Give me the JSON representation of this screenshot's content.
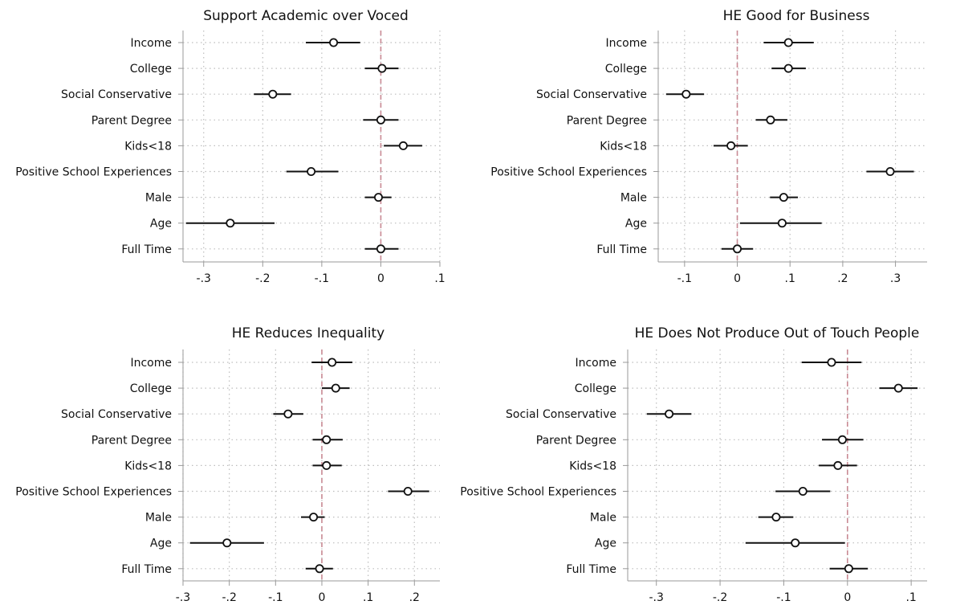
{
  "colors": {
    "point_stroke": "#111111",
    "ci_line": "#111111",
    "zero_line": "#c98a94",
    "grid": "#bdbdbd",
    "axis": "#9a9a9a",
    "background": "#ffffff"
  },
  "chart_data": [
    {
      "type": "scatter",
      "subtype": "coefficient-plot",
      "title": "Support Academic over Voced",
      "grid": true,
      "reference_line": 0,
      "categories": [
        "Income",
        "College",
        "Social Conservative",
        "Parent Degree",
        "Kids<18",
        "Positive School Experiences",
        "Male",
        "Age",
        "Full Time"
      ],
      "estimates": [
        -0.08,
        0.002,
        -0.183,
        0.0,
        0.038,
        -0.118,
        -0.004,
        -0.255,
        0.0
      ],
      "ci_low": [
        -0.127,
        -0.027,
        -0.215,
        -0.03,
        0.005,
        -0.16,
        -0.027,
        -0.33,
        -0.027
      ],
      "ci_high": [
        -0.035,
        0.03,
        -0.152,
        0.03,
        0.07,
        -0.072,
        0.018,
        -0.18,
        0.03
      ],
      "xlim": [
        -0.335,
        0.1
      ],
      "xticks": [
        -0.3,
        -0.2,
        -0.1,
        0,
        0.1
      ],
      "xtick_labels": [
        "-.3",
        "-.2",
        "-.1",
        "0",
        ".1"
      ]
    },
    {
      "type": "scatter",
      "subtype": "coefficient-plot",
      "title": "HE Good for Business",
      "grid": true,
      "reference_line": 0,
      "categories": [
        "Income",
        "College",
        "Social Conservative",
        "Parent Degree",
        "Kids<18",
        "Positive School Experiences",
        "Male",
        "Age",
        "Full Time"
      ],
      "estimates": [
        0.097,
        0.097,
        -0.097,
        0.063,
        -0.012,
        0.29,
        0.088,
        0.085,
        0.0
      ],
      "ci_low": [
        0.05,
        0.065,
        -0.135,
        0.035,
        -0.045,
        0.245,
        0.062,
        0.005,
        -0.03
      ],
      "ci_high": [
        0.145,
        0.13,
        -0.063,
        0.095,
        0.02,
        0.335,
        0.115,
        0.16,
        0.03
      ],
      "xlim": [
        -0.15,
        0.36
      ],
      "xticks": [
        -0.1,
        0,
        0.1,
        0.2,
        0.3
      ],
      "xtick_labels": [
        "-.1",
        "0",
        ".1",
        ".2",
        ".3"
      ]
    },
    {
      "type": "scatter",
      "subtype": "coefficient-plot",
      "title": "HE Reduces Inequality",
      "grid": true,
      "reference_line": 0,
      "categories": [
        "Income",
        "College",
        "Social Conservative",
        "Parent Degree",
        "Kids<18",
        "Positive School Experiences",
        "Male",
        "Age",
        "Full Time"
      ],
      "estimates": [
        0.022,
        0.03,
        -0.073,
        0.01,
        0.01,
        0.186,
        -0.018,
        -0.205,
        -0.005
      ],
      "ci_low": [
        -0.022,
        0.0,
        -0.105,
        -0.02,
        -0.02,
        0.143,
        -0.045,
        -0.285,
        -0.035
      ],
      "ci_high": [
        0.066,
        0.06,
        -0.04,
        0.045,
        0.043,
        0.232,
        0.006,
        -0.125,
        0.024
      ],
      "xlim": [
        -0.3,
        0.255
      ],
      "xticks": [
        -0.3,
        -0.2,
        -0.1,
        0,
        0.1,
        0.2
      ],
      "xtick_labels": [
        "-.3",
        "-.2",
        "-.1",
        "0",
        ".1",
        ".2"
      ]
    },
    {
      "type": "scatter",
      "subtype": "coefficient-plot",
      "title": "HE Does Not Produce Out of Touch People",
      "grid": true,
      "reference_line": 0,
      "categories": [
        "Income",
        "College",
        "Social Conservative",
        "Parent Degree",
        "Kids<18",
        "Positive School Experiences",
        "Male",
        "Age",
        "Full Time"
      ],
      "estimates": [
        -0.025,
        0.08,
        -0.28,
        -0.008,
        -0.015,
        -0.07,
        -0.112,
        -0.082,
        0.002
      ],
      "ci_low": [
        -0.072,
        0.05,
        -0.315,
        -0.04,
        -0.045,
        -0.113,
        -0.14,
        -0.16,
        -0.028
      ],
      "ci_high": [
        0.022,
        0.11,
        -0.245,
        0.025,
        0.015,
        -0.027,
        -0.085,
        -0.004,
        0.032
      ],
      "xlim": [
        -0.345,
        0.125
      ],
      "xticks": [
        -0.3,
        -0.2,
        -0.1,
        0,
        0.1
      ],
      "xtick_labels": [
        "-.3",
        "-.2",
        "-.1",
        "0",
        ".1"
      ]
    }
  ]
}
